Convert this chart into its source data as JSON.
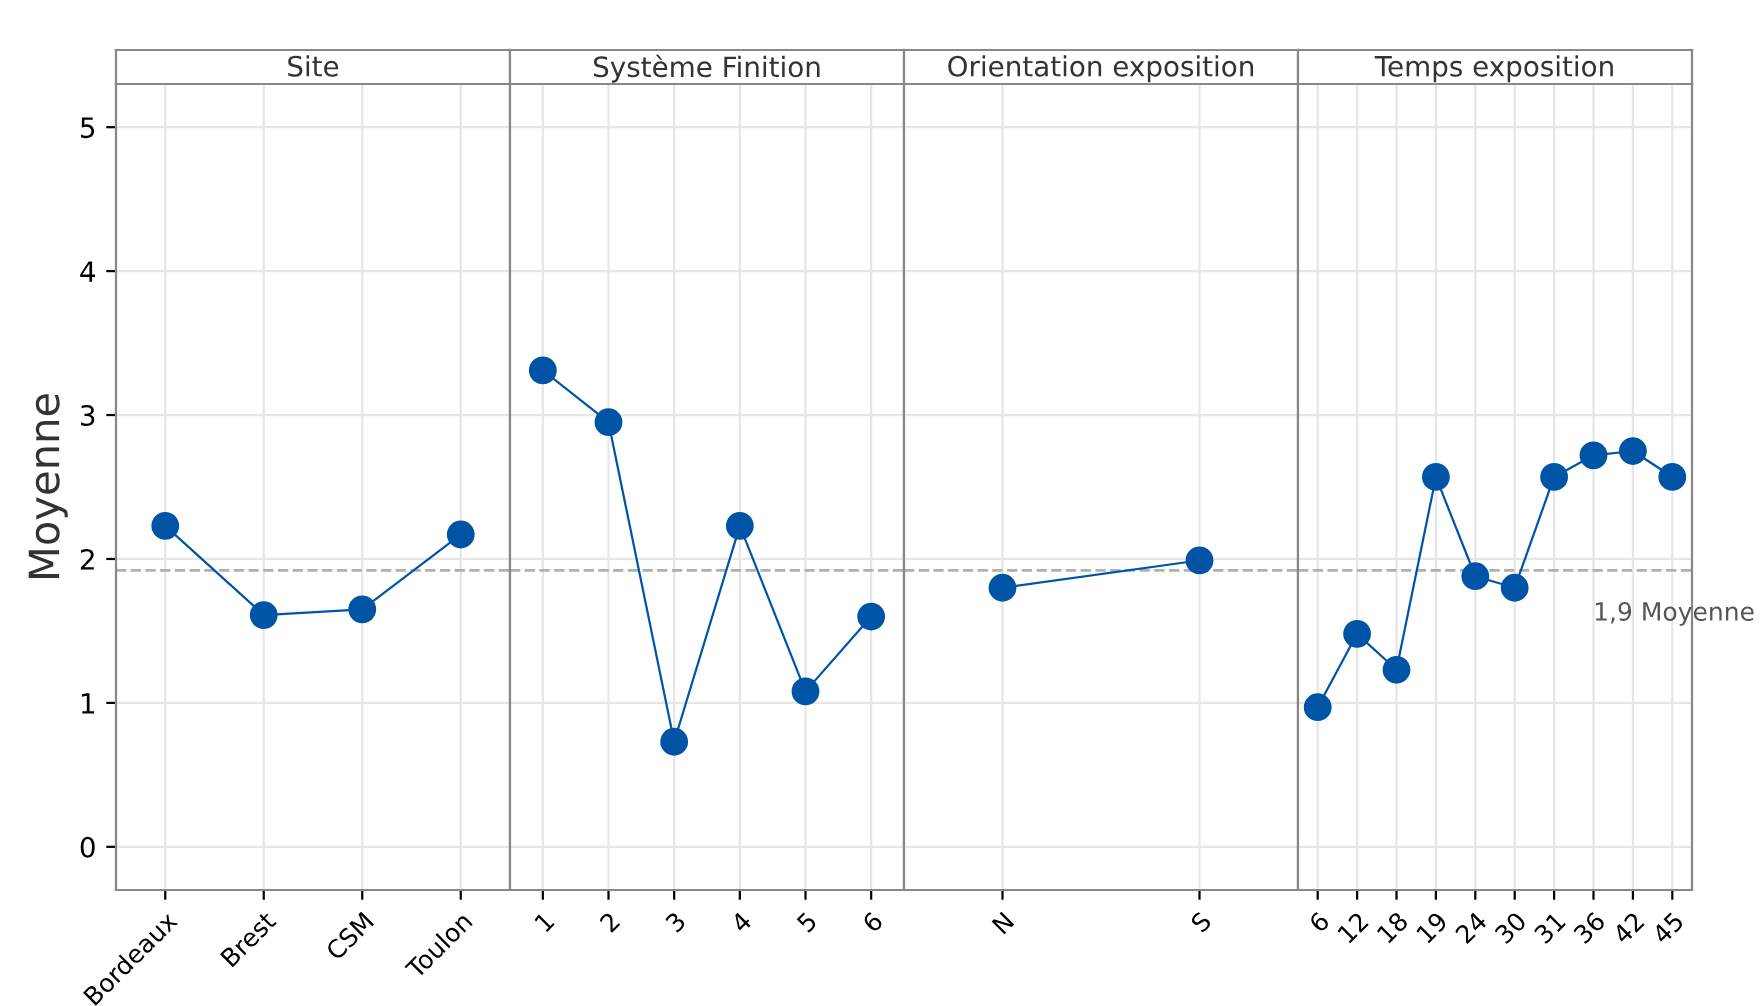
{
  "chart_data": [
    {
      "type": "line",
      "title": "Site",
      "ylabel": "Moyenne",
      "categories": [
        "Bordeaux",
        "Brest",
        "CSM",
        "Toulon"
      ],
      "values": [
        2.23,
        1.61,
        1.65,
        2.17
      ],
      "color": "#0054a6",
      "marker": "circle",
      "ylim": [
        -0.3,
        5.3
      ],
      "yticks": [
        0,
        1,
        2,
        3,
        4,
        5
      ],
      "grid": true,
      "ref_lines": [
        {
          "axis": "y",
          "value": 1.92,
          "label": null
        }
      ]
    },
    {
      "type": "line",
      "title": "Système Finition",
      "categories": [
        "1",
        "2",
        "3",
        "4",
        "5",
        "6"
      ],
      "values": [
        3.31,
        2.95,
        0.73,
        2.23,
        1.08,
        1.6
      ],
      "color": "#0054a6",
      "marker": "circle",
      "ylim": [
        -0.3,
        5.3
      ],
      "yticks": [
        0,
        1,
        2,
        3,
        4,
        5
      ],
      "grid": true,
      "tick_labels": "x",
      "ref_lines": [
        {
          "axis": "y",
          "value": 1.92,
          "label": null
        }
      ]
    },
    {
      "type": "line",
      "title": "Orientation exposition",
      "categories": [
        "N",
        "S"
      ],
      "values": [
        1.8,
        1.99
      ],
      "color": "#0054a6",
      "marker": "circle",
      "ylim": [
        -0.3,
        5.3
      ],
      "yticks": [
        0,
        1,
        2,
        3,
        4,
        5
      ],
      "grid": true,
      "tick_labels": "x",
      "ref_lines": [
        {
          "axis": "y",
          "value": 1.92,
          "label": null
        }
      ]
    },
    {
      "type": "line",
      "title": "Temps exposition",
      "categories": [
        "6",
        "12",
        "18",
        "19",
        "24",
        "30",
        "31",
        "36",
        "42",
        "45"
      ],
      "values": [
        0.97,
        1.48,
        1.23,
        2.57,
        1.88,
        1.8,
        2.57,
        2.72,
        2.75,
        2.57
      ],
      "color": "#0054a6",
      "marker": "circle",
      "ylim": [
        -0.3,
        5.3
      ],
      "yticks": [
        0,
        1,
        2,
        3,
        4,
        5
      ],
      "grid": true,
      "tick_labels": "x",
      "ref_lines": [
        {
          "axis": "y",
          "value": 1.92,
          "label": "1,9 Moyenne"
        }
      ]
    }
  ]
}
